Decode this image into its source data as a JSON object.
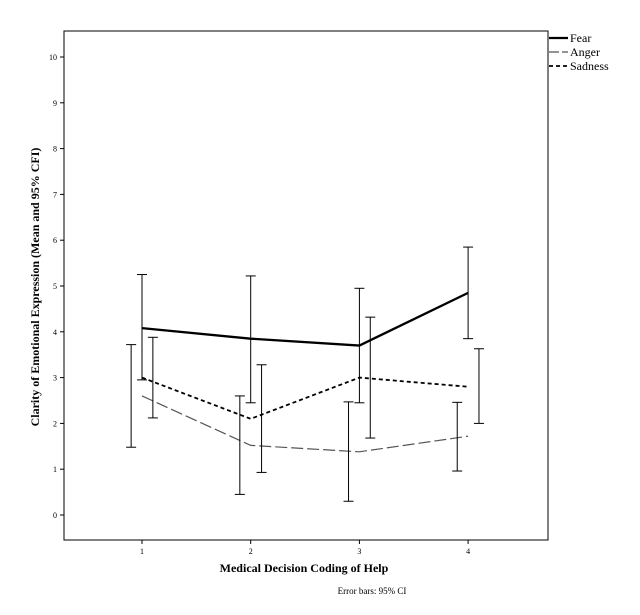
{
  "chart_data": {
    "type": "line",
    "title": "",
    "xlabel": "Medical Decision Coding of Help",
    "ylabel": "Clarity of Emotional Expression (Mean and 95% CFI)",
    "x": [
      1,
      2,
      3,
      4
    ],
    "x_tick_labels": [
      "1",
      "2",
      "3",
      "4"
    ],
    "xlim": [
      0.2,
      4.7
    ],
    "ylim": [
      -0.5,
      10.6
    ],
    "y_ticks": [
      0,
      1,
      2,
      3,
      4,
      5,
      6,
      7,
      8,
      9,
      10
    ],
    "y_tick_labels": [
      "0",
      "1",
      "2",
      "3",
      "4",
      "5",
      "6",
      "7",
      "8",
      "9",
      "10"
    ],
    "grid": false,
    "legend_position": "top-right outside",
    "footnote": "Error bars: 95% CI",
    "series": [
      {
        "name": "Fear",
        "style": "solid-thick",
        "color": "#000000",
        "values": [
          4.08,
          3.85,
          3.7,
          4.85
        ],
        "ci_lower": [
          2.95,
          2.45,
          2.45,
          3.85
        ],
        "ci_upper": [
          5.25,
          5.22,
          4.95,
          5.85
        ],
        "errorbar_offset": 0.0
      },
      {
        "name": "Anger",
        "style": "long-dash",
        "color": "#555555",
        "values": [
          2.6,
          1.52,
          1.38,
          1.72
        ],
        "ci_lower": [
          1.48,
          0.45,
          0.3,
          0.96
        ],
        "ci_upper": [
          3.72,
          2.6,
          2.47,
          2.46
        ],
        "errorbar_offset": -0.1
      },
      {
        "name": "Sadness",
        "style": "short-dash",
        "color": "#000000",
        "values": [
          3.0,
          2.1,
          3.0,
          2.8
        ],
        "ci_lower": [
          2.12,
          0.93,
          1.68,
          2.0
        ],
        "ci_upper": [
          3.88,
          3.28,
          4.32,
          3.63
        ],
        "errorbar_offset": 0.1
      }
    ]
  }
}
